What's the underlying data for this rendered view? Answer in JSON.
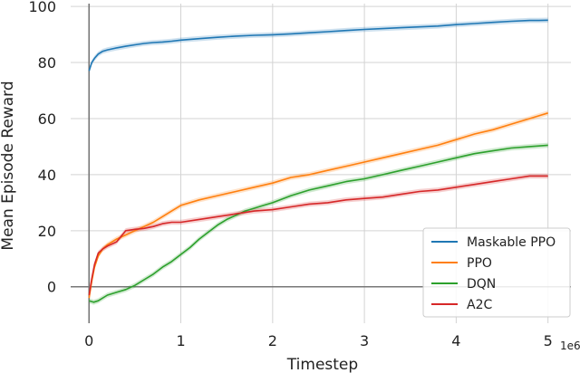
{
  "chart_data": {
    "type": "line",
    "xlabel": "Timestep",
    "ylabel": "Mean Episode Reward",
    "x_exponent_label": "1e6",
    "xlim": [
      -0.2,
      5.25
    ],
    "ylim": [
      -13,
      101
    ],
    "xticks": [
      0,
      1,
      2,
      3,
      4,
      5
    ],
    "yticks": [
      0,
      20,
      40,
      60,
      80,
      100
    ],
    "grid": true,
    "legend_position": "lower-right",
    "series": [
      {
        "name": "Maskable PPO",
        "color": "#1f77b4",
        "x": [
          0,
          0.03,
          0.06,
          0.1,
          0.15,
          0.2,
          0.3,
          0.4,
          0.5,
          0.6,
          0.7,
          0.8,
          0.9,
          1.0,
          1.2,
          1.4,
          1.6,
          1.8,
          2.0,
          2.2,
          2.4,
          2.6,
          2.8,
          3.0,
          3.2,
          3.4,
          3.6,
          3.8,
          4.0,
          4.2,
          4.4,
          4.6,
          4.8,
          4.9,
          5.0
        ],
        "y": [
          77,
          80,
          81.5,
          83,
          84,
          84.5,
          85.2,
          85.8,
          86.3,
          86.8,
          87.1,
          87.3,
          87.6,
          88.0,
          88.5,
          89.0,
          89.4,
          89.7,
          89.9,
          90.2,
          90.6,
          91.0,
          91.4,
          91.8,
          92.1,
          92.4,
          92.7,
          93.0,
          93.5,
          93.9,
          94.3,
          94.7,
          95.0,
          95.0,
          95.1
        ]
      },
      {
        "name": "PPO",
        "color": "#ff7f0e",
        "x": [
          0,
          0.03,
          0.06,
          0.1,
          0.15,
          0.2,
          0.3,
          0.4,
          0.5,
          0.6,
          0.7,
          0.8,
          0.9,
          1.0,
          1.2,
          1.4,
          1.6,
          1.8,
          2.0,
          2.2,
          2.4,
          2.6,
          2.8,
          3.0,
          3.2,
          3.4,
          3.6,
          3.8,
          4.0,
          4.2,
          4.4,
          4.6,
          4.8,
          5.0
        ],
        "y": [
          -4,
          2,
          7,
          11,
          13.5,
          15,
          17,
          18.5,
          20,
          21.5,
          23,
          25,
          27,
          29,
          31,
          32.5,
          34,
          35.5,
          37,
          39,
          40,
          41.5,
          43,
          44.5,
          46,
          47.5,
          49,
          50.5,
          52.5,
          54.5,
          56,
          58,
          60,
          62
        ]
      },
      {
        "name": "DQN",
        "color": "#2ca02c",
        "x": [
          0,
          0.05,
          0.1,
          0.2,
          0.3,
          0.4,
          0.5,
          0.6,
          0.7,
          0.8,
          0.9,
          1.0,
          1.1,
          1.2,
          1.3,
          1.4,
          1.5,
          1.6,
          1.7,
          1.8,
          1.9,
          2.0,
          2.2,
          2.4,
          2.6,
          2.8,
          3.0,
          3.2,
          3.4,
          3.6,
          3.8,
          4.0,
          4.2,
          4.4,
          4.6,
          4.8,
          5.0
        ],
        "y": [
          -5,
          -5.5,
          -5,
          -3,
          -2,
          -1,
          0.5,
          2.5,
          4.5,
          7,
          9,
          11.5,
          14,
          17,
          19.5,
          22,
          24,
          25.5,
          27,
          28,
          29,
          30,
          32.5,
          34.5,
          36,
          37.5,
          38.5,
          40,
          41.5,
          43,
          44.5,
          46,
          47.5,
          48.5,
          49.5,
          50,
          50.5
        ]
      },
      {
        "name": "A2C",
        "color": "#d62728",
        "x": [
          0,
          0.03,
          0.06,
          0.1,
          0.15,
          0.2,
          0.3,
          0.35,
          0.4,
          0.5,
          0.6,
          0.7,
          0.8,
          0.9,
          1.0,
          1.2,
          1.4,
          1.6,
          1.8,
          2.0,
          2.2,
          2.4,
          2.6,
          2.8,
          3.0,
          3.2,
          3.4,
          3.6,
          3.8,
          4.0,
          4.2,
          4.4,
          4.6,
          4.8,
          5.0
        ],
        "y": [
          -3,
          3,
          8,
          12,
          13.5,
          14.5,
          16,
          18,
          20,
          20.5,
          20.8,
          21.5,
          22.5,
          23,
          23,
          24,
          25,
          26,
          27,
          27.5,
          28.5,
          29.5,
          30,
          31,
          31.5,
          32,
          33,
          34,
          34.5,
          35.5,
          36.5,
          37.5,
          38.5,
          39.5,
          39.5
        ]
      }
    ]
  }
}
